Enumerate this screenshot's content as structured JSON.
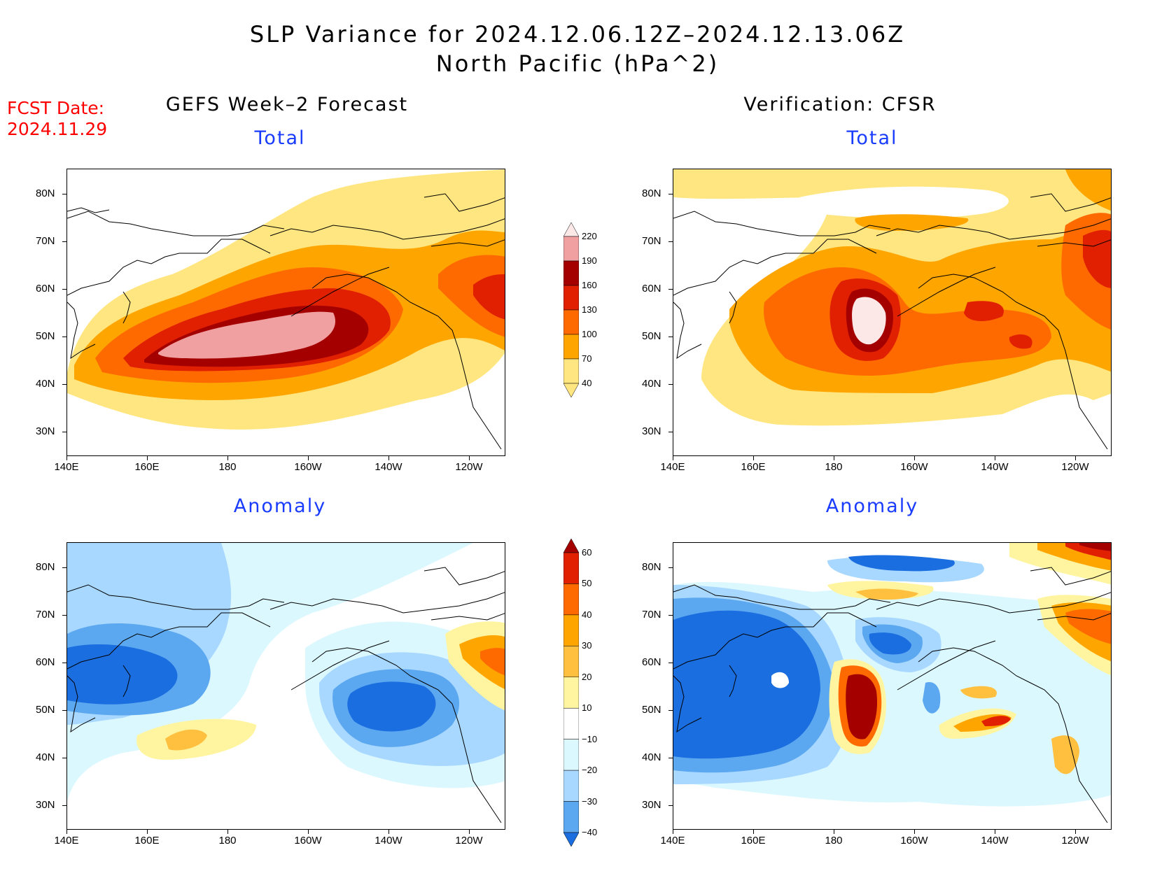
{
  "title_line1": "SLP Variance for 2024.12.06.12Z–2024.12.13.06Z",
  "title_line2": "North Pacific (hPa^2)",
  "fcst_date_label": "FCST Date:",
  "fcst_date_value": "2024.11.29",
  "left_header": "GEFS Week–2 Forecast",
  "right_header": "Verification: CFSR",
  "panels": {
    "tl": {
      "label": "Total"
    },
    "tr": {
      "label": "Total"
    },
    "bl": {
      "label": "Anomaly"
    },
    "br": {
      "label": "Anomaly"
    }
  },
  "lat_ticks": [
    "80N",
    "70N",
    "60N",
    "50N",
    "40N",
    "30N"
  ],
  "lon_ticks": [
    "140E",
    "160E",
    "180",
    "160W",
    "140W",
    "120W"
  ],
  "colorbar_total": {
    "levels": [
      "40",
      "70",
      "100",
      "130",
      "160",
      "190",
      "220"
    ],
    "colors": [
      "#ffe680",
      "#ffa500",
      "#ff6a00",
      "#e02000",
      "#a50000",
      "#f0a0a0",
      "#fde8e8"
    ]
  },
  "colorbar_anom": {
    "levels": [
      "60",
      "50",
      "40",
      "30",
      "20",
      "10",
      "−10",
      "−20",
      "−30",
      "−40"
    ],
    "colors": [
      "#a50000",
      "#e02000",
      "#ff6a00",
      "#ffa500",
      "#ffc040",
      "#fff5a0",
      "#ffffff",
      "#dcf8ff",
      "#a8d8ff",
      "#5ca8f0",
      "#1a6ee0"
    ]
  }
}
